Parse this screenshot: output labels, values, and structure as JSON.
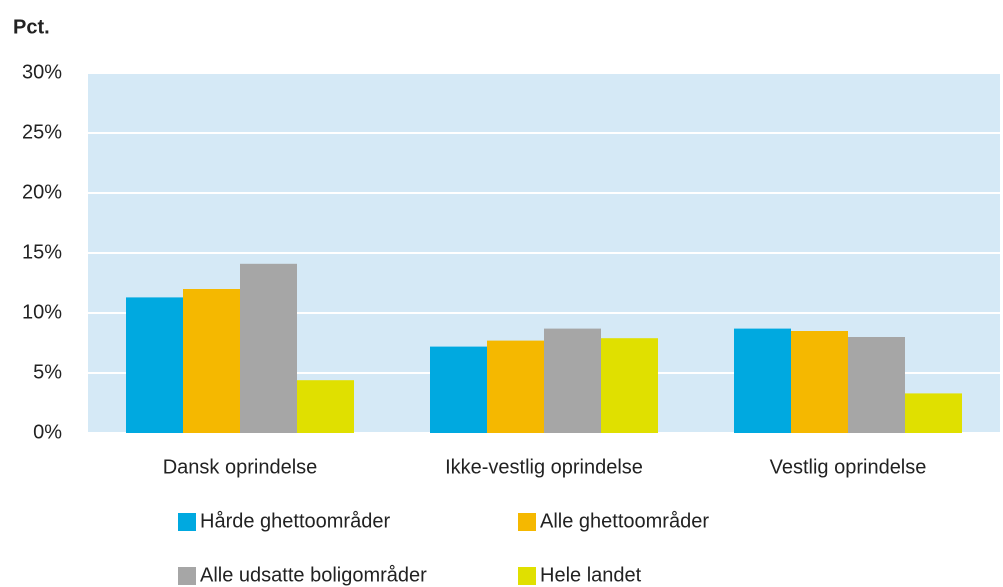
{
  "chart_data": {
    "type": "bar",
    "y_label": "Pct.",
    "categories": [
      "Dansk oprindelse",
      "Ikke-vestlig oprindelse",
      "Vestlig oprindelse"
    ],
    "series": [
      {
        "name": "Hårde ghettoområder",
        "color": "#00a9e0",
        "values": [
          11.3,
          7.2,
          8.7
        ]
      },
      {
        "name": "Alle ghettoområder",
        "color": "#f5b800",
        "values": [
          12.0,
          7.7,
          8.5
        ]
      },
      {
        "name": "Alle udsatte boligområder",
        "color": "#a6a6a6",
        "values": [
          14.1,
          8.7,
          8.0
        ]
      },
      {
        "name": "Hele landet",
        "color": "#e0e000",
        "values": [
          4.4,
          7.9,
          3.3
        ]
      }
    ],
    "ylim": [
      0,
      30
    ],
    "yticks": [
      {
        "value": 0,
        "label": "0%"
      },
      {
        "value": 5,
        "label": "5%"
      },
      {
        "value": 10,
        "label": "10%"
      },
      {
        "value": 15,
        "label": "15%"
      },
      {
        "value": 20,
        "label": "20%"
      },
      {
        "value": 25,
        "label": "25%"
      },
      {
        "value": 30,
        "label": "30%"
      }
    ],
    "grid": true,
    "plot_background": "#d5e9f6",
    "grid_color": "#ffffff"
  }
}
